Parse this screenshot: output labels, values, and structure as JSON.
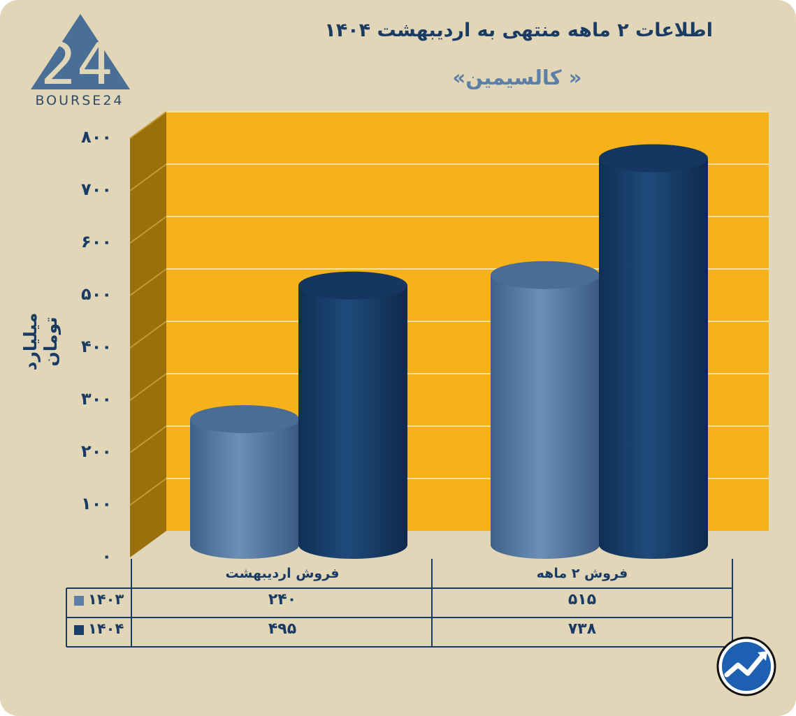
{
  "title": "اطلاعات ۲ ماهه منتهی به اردیبهشت ۱۴۰۴",
  "subtitle": "« کالسیمین»",
  "logo": {
    "text": "BOURSE24",
    "mark": "24"
  },
  "colors": {
    "background": "#e2d6b8",
    "plot_back": "#f7b11b",
    "plot_side": "#9a700c",
    "series_1403": "#5b7fa6",
    "series_1404": "#183d68",
    "text": "#1a3b63"
  },
  "chart_data": {
    "type": "bar",
    "title": "اطلاعات ۲ ماهه منتهی به اردیبهشت ۱۴۰۴",
    "subtitle": "« کالسیمین»",
    "ylabel": "میلیارد تومان",
    "ylim": [
      0,
      800
    ],
    "yticks": [
      "۰",
      "۱۰۰",
      "۲۰۰",
      "۳۰۰",
      "۴۰۰",
      "۵۰۰",
      "۶۰۰",
      "۷۰۰",
      "۸۰۰"
    ],
    "grid": true,
    "categories": [
      "فروش اردیبهشت",
      "فروش ۲ ماهه"
    ],
    "series": [
      {
        "name": "۱۴۰۳",
        "values": [
          240,
          515
        ],
        "labels": [
          "۲۴۰",
          "۵۱۵"
        ]
      },
      {
        "name": "۱۴۰۴",
        "values": [
          495,
          738
        ],
        "labels": [
          "۴۹۵",
          "۷۳۸"
        ]
      }
    ]
  },
  "badge_icon": "trend-chart-icon"
}
